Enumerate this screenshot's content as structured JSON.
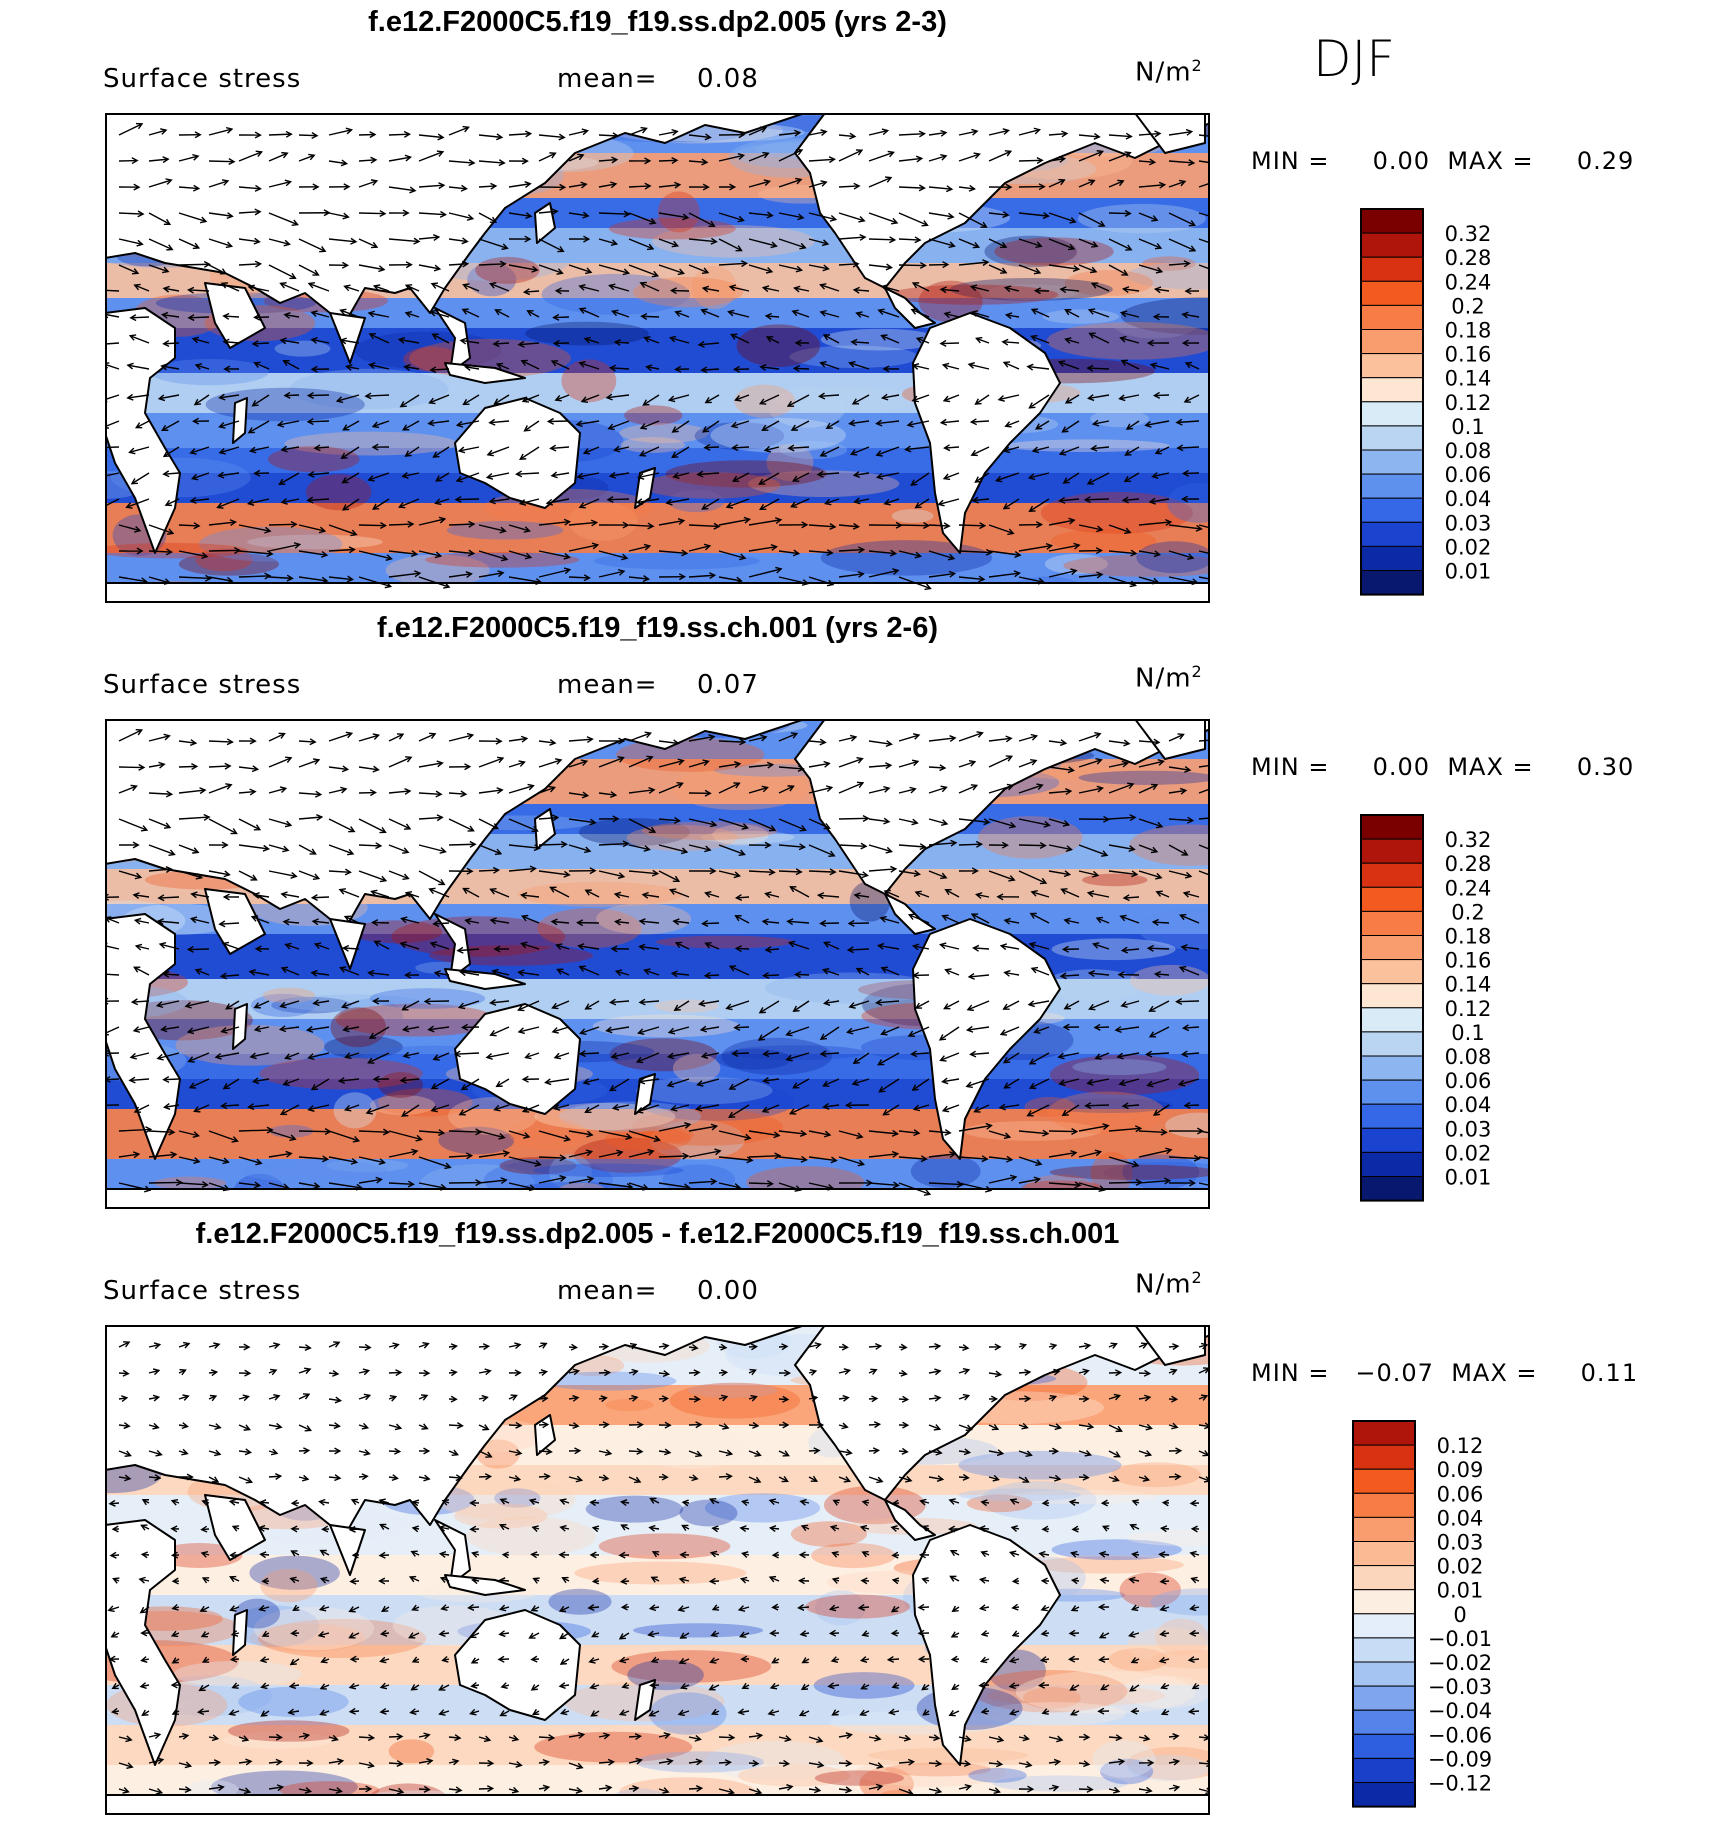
{
  "season": "DJF",
  "variable_label": "Surface stress",
  "mean_label": "mean=",
  "unit_base": "N/m",
  "unit_exp": "2",
  "min_label": "MIN =",
  "max_label": "MAX =",
  "panels": [
    {
      "title": "f.e12.F2000C5.f19_f19.ss.dp2.005 (yrs 2-3)",
      "mean": "0.08",
      "min": "0.00",
      "max": "0.29",
      "scale": "absolute",
      "colorbar": {
        "labels": [
          "0.32",
          "0.28",
          "0.24",
          "0.2",
          "0.18",
          "0.16",
          "0.14",
          "0.12",
          "0.1",
          "0.08",
          "0.06",
          "0.04",
          "0.03",
          "0.02",
          "0.01"
        ],
        "colors": [
          "#7a0000",
          "#b0150c",
          "#d93212",
          "#f25a1f",
          "#f77c45",
          "#f99d6f",
          "#fbc19d",
          "#fde6d2",
          "#d9ebf7",
          "#b9d5f2",
          "#8db5ef",
          "#5e90ee",
          "#3468e6",
          "#1a44cf",
          "#0d2aa6",
          "#07186e"
        ]
      }
    },
    {
      "title": "f.e12.F2000C5.f19_f19.ss.ch.001 (yrs 2-6)",
      "mean": "0.07",
      "min": "0.00",
      "max": "0.30",
      "scale": "absolute",
      "colorbar": {
        "labels": [
          "0.32",
          "0.28",
          "0.24",
          "0.2",
          "0.18",
          "0.16",
          "0.14",
          "0.12",
          "0.1",
          "0.08",
          "0.06",
          "0.04",
          "0.03",
          "0.02",
          "0.01"
        ],
        "colors": [
          "#7a0000",
          "#b0150c",
          "#d93212",
          "#f25a1f",
          "#f77c45",
          "#f99d6f",
          "#fbc19d",
          "#fde6d2",
          "#d9ebf7",
          "#b9d5f2",
          "#8db5ef",
          "#5e90ee",
          "#3468e6",
          "#1a44cf",
          "#0d2aa6",
          "#07186e"
        ]
      }
    },
    {
      "title": "f.e12.F2000C5.f19_f19.ss.dp2.005 - f.e12.F2000C5.f19_f19.ss.ch.001",
      "mean": "0.00",
      "min": "−0.07",
      "max": "0.11",
      "scale": "difference",
      "colorbar": {
        "labels": [
          "0.12",
          "0.09",
          "0.06",
          "0.04",
          "0.03",
          "0.02",
          "0.01",
          "0",
          "−0.01",
          "−0.02",
          "−0.03",
          "−0.04",
          "−0.06",
          "−0.09",
          "−0.12"
        ],
        "colors": [
          "#b0150c",
          "#d93212",
          "#f25a1f",
          "#f77c45",
          "#f99d6f",
          "#fbb994",
          "#fcd6bc",
          "#fdeee2",
          "#e3eefa",
          "#c8dcf6",
          "#a5c4f2",
          "#7ea5ee",
          "#5483ea",
          "#2e5fe0",
          "#1a3fc8",
          "#0d2aa6"
        ]
      }
    }
  ]
}
